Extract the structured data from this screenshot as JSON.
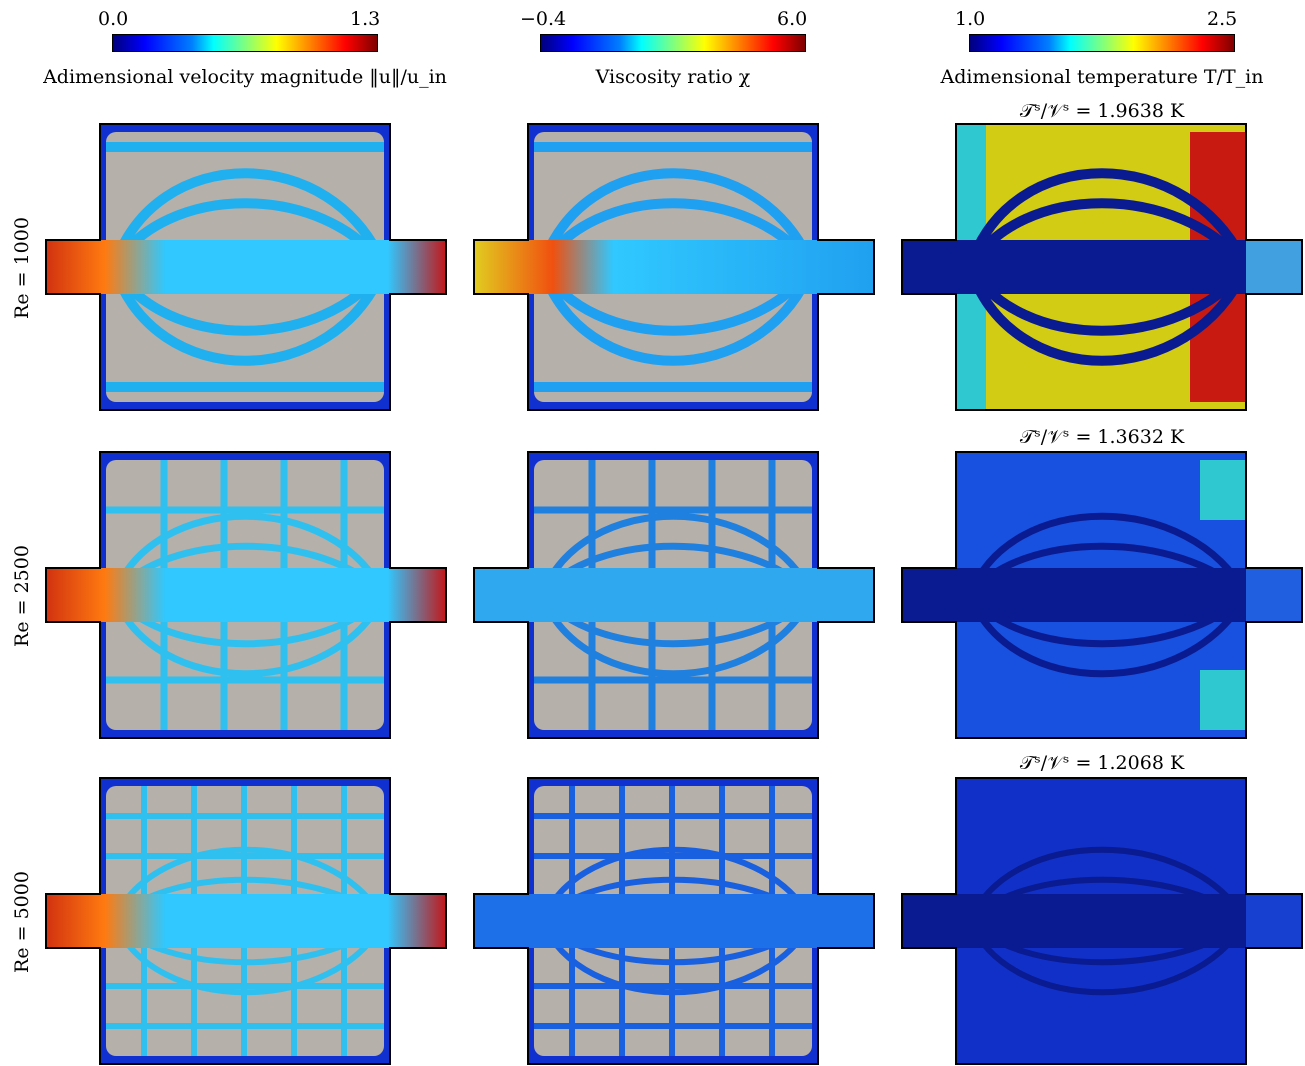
{
  "colorbars": [
    {
      "min": "0.0",
      "max": "1.3",
      "label": "Adimensional velocity magnitude ‖u‖/u_in"
    },
    {
      "min": "−0.4",
      "max": "6.0",
      "label": "Viscosity ratio χ"
    },
    {
      "min": "1.0",
      "max": "2.5",
      "label": "Adimensional temperature T/T_in"
    }
  ],
  "rows": [
    {
      "label": "Re = 1000",
      "entropy": "𝒯ˢ/𝒱ˢ = 1.9638 K"
    },
    {
      "label": "Re = 2500",
      "entropy": "𝒯ˢ/𝒱ˢ = 1.3632 K"
    },
    {
      "label": "Re = 5000",
      "entropy": "𝒯ˢ/𝒱ˢ = 1.2068 K"
    }
  ],
  "colors": {
    "solid": "#b5b0aa",
    "background_blue": "#0d24c8",
    "temp_yellow": "#d2cc14",
    "temp_hot": "#c81a10"
  }
}
